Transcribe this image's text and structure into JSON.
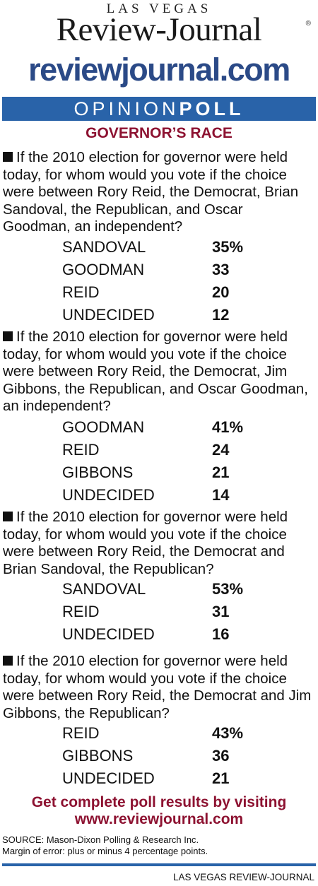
{
  "masthead": {
    "small": "LAS VEGAS",
    "big": "Review-Journal",
    "registered": "®",
    "url": "reviewjournal.com"
  },
  "banner": {
    "light": "OPINION",
    "bold": "POLL"
  },
  "section_title": "GOVERNOR’S RACE",
  "questions": [
    {
      "text": "If the 2010 election for governor were held today, for whom would you vote if the choice were between Rory Reid, the Democrat, Brian Sandoval, the Republican, and Oscar Goodman, an independent?",
      "results": [
        {
          "name": "SANDOVAL",
          "value": "35%"
        },
        {
          "name": "GOODMAN",
          "value": "33"
        },
        {
          "name": "REID",
          "value": "20"
        },
        {
          "name": "UNDECIDED",
          "value": "12"
        }
      ]
    },
    {
      "text": "If the 2010 election for governor were held today, for whom would you vote if the choice were between Rory Reid, the Democrat, Jim Gibbons, the Republican, and Oscar Goodman, an independent?",
      "results": [
        {
          "name": "GOODMAN",
          "value": "41%"
        },
        {
          "name": "REID",
          "value": "24"
        },
        {
          "name": "GIBBONS",
          "value": "21"
        },
        {
          "name": "UNDECIDED",
          "value": "14"
        }
      ]
    },
    {
      "text": "If the 2010 election for governor were held today, for whom would you vote if the choice were between Rory Reid, the Democrat and Brian Sandoval, the Republican?",
      "results": [
        {
          "name": "SANDOVAL",
          "value": "53%"
        },
        {
          "name": "REID",
          "value": "31"
        },
        {
          "name": "UNDECIDED",
          "value": "16"
        }
      ]
    },
    {
      "text": "If the 2010 election for governor were held today, for whom would you vote if the choice were between Rory Reid, the Democrat and Jim Gibbons, the Republican?",
      "results": [
        {
          "name": "REID",
          "value": "43%"
        },
        {
          "name": "GIBBONS",
          "value": "36"
        },
        {
          "name": "UNDECIDED",
          "value": "21"
        }
      ]
    }
  ],
  "cta": {
    "line1": "Get complete poll results by visiting",
    "line2": "www.reviewjournal.com"
  },
  "source": {
    "line1": "SOURCE: Mason-Dixon Polling & Research Inc.",
    "line2": "Margin of error: plus or minus 4 percentage points."
  },
  "credit": "LAS VEGAS REVIEW-JOURNAL",
  "colors": {
    "banner_blue": "#2963a9",
    "accent_red": "#8d1231",
    "url_blue": "#2b4a87"
  }
}
